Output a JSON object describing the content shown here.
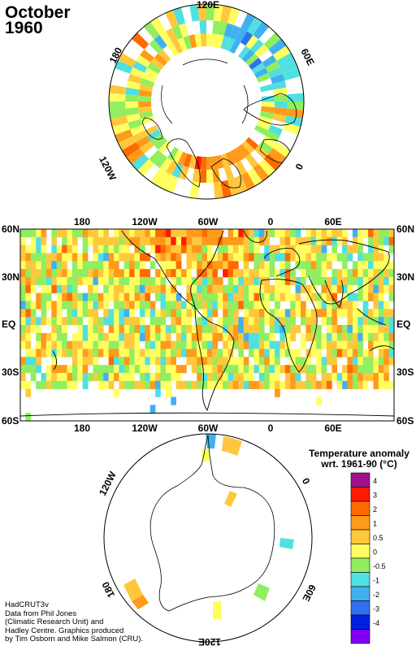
{
  "title": {
    "line1": "October",
    "line2": "1960"
  },
  "north_polar_labels": [
    "120E",
    "60E",
    "0",
    "120W",
    "180"
  ],
  "map": {
    "lat_labels": [
      "60N",
      "30N",
      "EQ",
      "30S",
      "60S"
    ],
    "lon_labels": [
      "180",
      "120W",
      "60W",
      "0",
      "60E"
    ]
  },
  "south_polar_labels": [
    "120W",
    "0",
    "180",
    "60E",
    "120E"
  ],
  "legend": {
    "title_line1": "Temperature anomaly",
    "title_line2": "wrt. 1961-90 (°C)",
    "bins": [
      {
        "label": "4",
        "color": "#a0108a"
      },
      {
        "label": "3",
        "color": "#ff1a00"
      },
      {
        "label": "2",
        "color": "#ff6a00"
      },
      {
        "label": "1",
        "color": "#ff9a1a"
      },
      {
        "label": "0.5",
        "color": "#ffc83c"
      },
      {
        "label": "0",
        "color": "#ffff60"
      },
      {
        "label": "-0.5",
        "color": "#90ee60"
      },
      {
        "label": "-1",
        "color": "#50e0e0"
      },
      {
        "label": "-2",
        "color": "#40b0f0"
      },
      {
        "label": "-3",
        "color": "#3070f0"
      },
      {
        "label": "-4",
        "color": "#0020e0"
      },
      {
        "label": "",
        "color": "#8000f0"
      }
    ]
  },
  "credit": {
    "line1": "HadCRUT3v",
    "line2": "Data from Phil Jones",
    "line3": "(Climatic Research Unit) and",
    "line4": "Hadley Centre.  Graphics produced",
    "line5": "by Tim Osborn and Mike Salmon (CRU)."
  }
}
